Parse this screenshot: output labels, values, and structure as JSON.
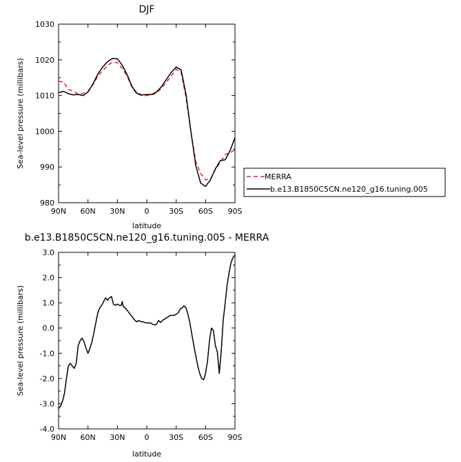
{
  "chart_data": [
    {
      "type": "line",
      "title": "DJF",
      "xlabel": "latitude",
      "ylabel": "Sea-level pressure (millibars)",
      "xlim": [
        90,
        -90
      ],
      "ylim": [
        980,
        1030
      ],
      "x_ticks": [
        {
          "v": 90,
          "label": "90N"
        },
        {
          "v": 60,
          "label": "60N"
        },
        {
          "v": 30,
          "label": "30N"
        },
        {
          "v": 0,
          "label": "0"
        },
        {
          "v": -30,
          "label": "30S"
        },
        {
          "v": -60,
          "label": "60S"
        },
        {
          "v": -90,
          "label": "90S"
        }
      ],
      "y_ticks": [
        {
          "v": 980,
          "label": "980"
        },
        {
          "v": 990,
          "label": "990"
        },
        {
          "v": 1000,
          "label": "1000"
        },
        {
          "v": 1010,
          "label": "1010"
        },
        {
          "v": 1020,
          "label": "1020"
        },
        {
          "v": 1030,
          "label": "1030"
        }
      ],
      "grid": false,
      "legend_position": "right",
      "series": [
        {
          "name": "MERRA",
          "color": "#e8231e",
          "dash": "dashed",
          "x": [
            90,
            85,
            80,
            75,
            70,
            65,
            60,
            55,
            50,
            45,
            40,
            35,
            30,
            25,
            20,
            15,
            10,
            5,
            0,
            -5,
            -10,
            -15,
            -20,
            -25,
            -30,
            -35,
            -40,
            -45,
            -50,
            -55,
            -60,
            -65,
            -70,
            -75,
            -80,
            -85,
            -90
          ],
          "y": [
            1014,
            1013.8,
            1011.7,
            1011.3,
            1010.4,
            1010.6,
            1011.2,
            1013.0,
            1015.4,
            1017.0,
            1018.4,
            1019.4,
            1019.2,
            1017.6,
            1015.4,
            1012.2,
            1010.5,
            1010.0,
            1010.0,
            1010.2,
            1010.7,
            1012.0,
            1013.7,
            1015.5,
            1017.4,
            1016.5,
            1009.5,
            1000.0,
            991.5,
            988.2,
            986.4,
            986.6,
            989.3,
            991.3,
            993.5,
            994.0,
            994.8
          ]
        },
        {
          "name": "b.e13.B1850C5CN.ne120_g16.tuning.005",
          "color": "#000000",
          "dash": "solid",
          "x": [
            90,
            85,
            80,
            75,
            70,
            65,
            60,
            55,
            50,
            45,
            40,
            35,
            30,
            25,
            20,
            15,
            10,
            5,
            0,
            -5,
            -10,
            -15,
            -20,
            -25,
            -30,
            -35,
            -40,
            -45,
            -50,
            -55,
            -60,
            -65,
            -70,
            -75,
            -80,
            -85,
            -90
          ],
          "y": [
            1010.8,
            1011.2,
            1010.5,
            1010.2,
            1010.3,
            1010.0,
            1011.0,
            1013.2,
            1016.0,
            1018.0,
            1019.5,
            1020.4,
            1020.3,
            1018.5,
            1015.8,
            1012.5,
            1010.6,
            1010.2,
            1010.3,
            1010.3,
            1011.0,
            1012.5,
            1014.5,
            1016.5,
            1018.0,
            1017.2,
            1010.4,
            1000.0,
            990.4,
            985.5,
            984.6,
            986.4,
            989.5,
            991.8,
            992.0,
            994.6,
            998.2
          ]
        }
      ]
    },
    {
      "type": "line",
      "title": "b.e13.B1850C5CN.ne120_g16.tuning.005 - MERRA",
      "xlabel": "latitude",
      "ylabel": "Sea-level pressure (millibars)",
      "xlim": [
        90,
        -90
      ],
      "ylim": [
        -4.0,
        3.0
      ],
      "x_ticks": [
        {
          "v": 90,
          "label": "90N"
        },
        {
          "v": 60,
          "label": "60N"
        },
        {
          "v": 30,
          "label": "30N"
        },
        {
          "v": 0,
          "label": "0"
        },
        {
          "v": -30,
          "label": "30S"
        },
        {
          "v": -60,
          "label": "60S"
        },
        {
          "v": -90,
          "label": "90S"
        }
      ],
      "y_ticks": [
        {
          "v": -4,
          "label": "-4.0"
        },
        {
          "v": -3,
          "label": "-3.0"
        },
        {
          "v": -2,
          "label": "-2.0"
        },
        {
          "v": -1,
          "label": "-1.0"
        },
        {
          "v": 0,
          "label": "0.0"
        },
        {
          "v": 1,
          "label": "1.0"
        },
        {
          "v": 2,
          "label": "2.0"
        },
        {
          "v": 3,
          "label": "3.0"
        }
      ],
      "grid": false,
      "series": [
        {
          "color": "#000000",
          "dash": "solid",
          "x": [
            90,
            88,
            86,
            84,
            82,
            80,
            78,
            76,
            74,
            72,
            70,
            68,
            66,
            64,
            62,
            60,
            58,
            56,
            54,
            52,
            50,
            48,
            46,
            44,
            42,
            40,
            38,
            36,
            35,
            34,
            32,
            30,
            28,
            26,
            25,
            24,
            22,
            20,
            18,
            16,
            14,
            12,
            10,
            8,
            6,
            4,
            2,
            0,
            -2,
            -4,
            -6,
            -8,
            -10,
            -12,
            -14,
            -16,
            -18,
            -20,
            -22,
            -24,
            -26,
            -28,
            -30,
            -32,
            -34,
            -36,
            -38,
            -40,
            -42,
            -44,
            -46,
            -48,
            -50,
            -52,
            -54,
            -56,
            -58,
            -60,
            -62,
            -64,
            -66,
            -68,
            -70,
            -72,
            -74,
            -76,
            -78,
            -80,
            -82,
            -84,
            -86,
            -88,
            -90
          ],
          "y": [
            -3.2,
            -3.1,
            -2.9,
            -2.6,
            -2.0,
            -1.5,
            -1.4,
            -1.5,
            -1.6,
            -1.4,
            -0.7,
            -0.5,
            -0.4,
            -0.55,
            -0.8,
            -1.0,
            -0.8,
            -0.55,
            -0.2,
            0.2,
            0.6,
            0.8,
            0.9,
            1.05,
            1.2,
            1.1,
            1.2,
            1.25,
            1.1,
            0.95,
            0.9,
            0.95,
            0.9,
            0.9,
            1.05,
            0.85,
            0.8,
            0.7,
            0.6,
            0.5,
            0.4,
            0.3,
            0.25,
            0.3,
            0.25,
            0.25,
            0.22,
            0.2,
            0.2,
            0.2,
            0.15,
            0.12,
            0.15,
            0.3,
            0.22,
            0.3,
            0.35,
            0.4,
            0.45,
            0.5,
            0.5,
            0.5,
            0.55,
            0.6,
            0.75,
            0.8,
            0.88,
            0.8,
            0.55,
            0.2,
            -0.25,
            -0.7,
            -1.1,
            -1.5,
            -1.8,
            -2.0,
            -2.05,
            -1.8,
            -1.3,
            -0.5,
            0.0,
            -0.1,
            -0.7,
            -0.95,
            -1.8,
            -0.9,
            0.3,
            1.0,
            1.7,
            2.2,
            2.6,
            2.8,
            2.9
          ]
        }
      ]
    }
  ]
}
